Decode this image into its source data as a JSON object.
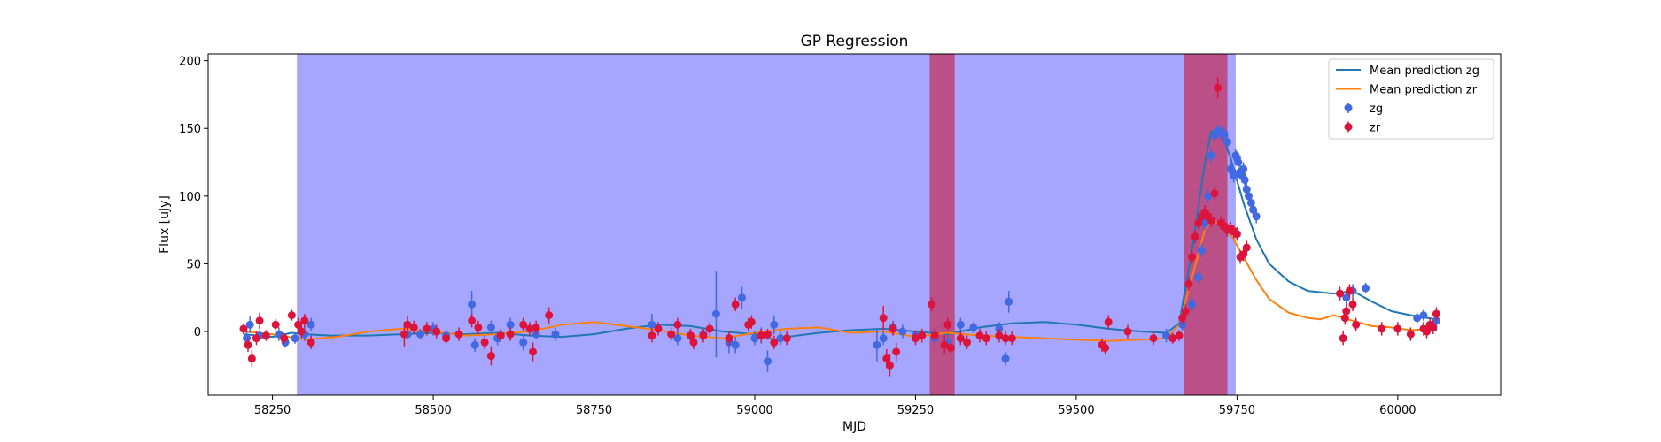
{
  "chart_data": {
    "type": "scatter",
    "title": "GP Regression",
    "xlabel": "MJD",
    "ylabel": "Flux [uJy]",
    "xlim": [
      58150,
      60160
    ],
    "ylim": [
      -47,
      205
    ],
    "xticks": [
      58250,
      58500,
      58750,
      59000,
      59250,
      59500,
      59750,
      60000
    ],
    "yticks": [
      0,
      50,
      100,
      150,
      200
    ],
    "legend_position": "top-right",
    "colors": {
      "gp_zg": "#1f77b4",
      "gp_zr": "#ff7f0e",
      "points_zg": "#4169e1",
      "points_zr": "#dc143c",
      "span_zg": "#6b6bff",
      "span_zr": "#c0396a"
    },
    "shaded_regions": [
      {
        "band": "zg",
        "x0": 58288,
        "x1": 59748
      },
      {
        "band": "zr",
        "x0": 59272,
        "x1": 59311
      },
      {
        "band": "zr",
        "x0": 59668,
        "x1": 59735
      }
    ],
    "legend": [
      {
        "label": "Mean prediction zg",
        "kind": "line",
        "color": "#1f77b4"
      },
      {
        "label": "Mean prediction zr",
        "kind": "line",
        "color": "#ff7f0e"
      },
      {
        "label": "zg",
        "kind": "marker",
        "color": "#4169e1"
      },
      {
        "label": "zr",
        "kind": "marker",
        "color": "#dc143c"
      }
    ],
    "series": [
      {
        "name": "Mean prediction zg",
        "kind": "line",
        "x": [
          58205,
          58250,
          58280,
          58300,
          58340,
          58400,
          58450,
          58500,
          58550,
          58600,
          58650,
          58700,
          58750,
          58800,
          58850,
          58900,
          58950,
          59000,
          59030,
          59050,
          59100,
          59150,
          59200,
          59250,
          59300,
          59350,
          59400,
          59450,
          59500,
          59550,
          59600,
          59640,
          59660,
          59680,
          59700,
          59710,
          59720,
          59730,
          59740,
          59760,
          59780,
          59800,
          59830,
          59860,
          59900,
          59930,
          59960,
          59990,
          60020,
          60060
        ],
        "y": [
          -2,
          -4,
          -1,
          -2,
          -3,
          -3,
          -2,
          -1,
          -2,
          -1,
          -3,
          -4,
          -2,
          2,
          5,
          4,
          0,
          -2,
          -6,
          -4,
          -1,
          1,
          2,
          0,
          -2,
          3,
          6,
          7,
          5,
          2,
          0,
          -1,
          6,
          60,
          125,
          148,
          147,
          142,
          128,
          95,
          68,
          50,
          37,
          30,
          28,
          30,
          22,
          15,
          12,
          9
        ]
      },
      {
        "name": "Mean prediction zr",
        "kind": "line",
        "x": [
          58205,
          58250,
          58300,
          58350,
          58400,
          58450,
          58500,
          58550,
          58600,
          58650,
          58700,
          58750,
          58800,
          58850,
          58900,
          58950,
          59000,
          59050,
          59100,
          59150,
          59200,
          59250,
          59300,
          59350,
          59400,
          59450,
          59500,
          59550,
          59600,
          59640,
          59660,
          59680,
          59700,
          59710,
          59720,
          59730,
          59740,
          59760,
          59780,
          59800,
          59830,
          59860,
          59880,
          59900,
          59930,
          59960,
          59990,
          60020,
          60060
        ],
        "y": [
          0,
          -2,
          -6,
          -4,
          0,
          2,
          0,
          -3,
          -2,
          0,
          5,
          7,
          4,
          1,
          -3,
          -5,
          -1,
          2,
          3,
          -1,
          0,
          -4,
          -1,
          -3,
          -4,
          -5,
          -6,
          -7,
          -6,
          -5,
          5,
          40,
          75,
          82,
          80,
          78,
          72,
          55,
          38,
          24,
          14,
          10,
          9,
          12,
          8,
          4,
          3,
          1,
          2
        ]
      },
      {
        "name": "zg",
        "kind": "points",
        "x": [
          58210,
          58215,
          58230,
          58260,
          58270,
          58285,
          58300,
          58310,
          58460,
          58480,
          58500,
          58520,
          58560,
          58565,
          58590,
          58600,
          58620,
          58640,
          58660,
          58690,
          58840,
          58880,
          58900,
          58920,
          58940,
          58960,
          58970,
          58980,
          59000,
          59010,
          59020,
          59030,
          59040,
          59190,
          59200,
          59215,
          59230,
          59250,
          59280,
          59300,
          59320,
          59340,
          59380,
          59390,
          59395,
          59640,
          59665,
          59680,
          59690,
          59695,
          59700,
          59705,
          59710,
          59715,
          59720,
          59725,
          59730,
          59735,
          59740,
          59743,
          59745,
          59748,
          59750,
          59752,
          59755,
          59758,
          59760,
          59762,
          59765,
          59768,
          59772,
          59775,
          59780,
          59920,
          59930,
          59950,
          60030,
          60040,
          60060
        ],
        "y": [
          -5,
          5,
          -3,
          -2,
          -8,
          -5,
          -2,
          5,
          -2,
          -2,
          2,
          -3,
          20,
          -10,
          3,
          -5,
          5,
          -8,
          -2,
          -2,
          5,
          -5,
          -3,
          -2,
          13,
          -8,
          -10,
          25,
          -5,
          -3,
          -22,
          5,
          -5,
          -10,
          -5,
          3,
          0,
          -3,
          -5,
          -8,
          5,
          3,
          2,
          -20,
          22,
          -3,
          5,
          20,
          40,
          60,
          80,
          100,
          130,
          145,
          148,
          147,
          146,
          140,
          120,
          118,
          115,
          130,
          128,
          125,
          118,
          115,
          120,
          112,
          105,
          100,
          95,
          90,
          85,
          25,
          30,
          32,
          10,
          12,
          8
        ],
        "err": [
          5,
          6,
          4,
          5,
          4,
          4,
          5,
          5,
          4,
          4,
          5,
          4,
          10,
          5,
          5,
          5,
          5,
          6,
          4,
          5,
          8,
          5,
          5,
          5,
          32,
          8,
          6,
          8,
          5,
          6,
          8,
          7,
          5,
          12,
          5,
          5,
          5,
          4,
          5,
          5,
          5,
          4,
          5,
          5,
          8,
          5,
          5,
          5,
          5,
          5,
          5,
          5,
          5,
          5,
          5,
          5,
          5,
          5,
          5,
          5,
          5,
          5,
          5,
          5,
          5,
          5,
          5,
          5,
          5,
          5,
          5,
          5,
          5,
          5,
          5,
          4,
          4,
          4,
          8
        ]
      },
      {
        "name": "zr",
        "kind": "points",
        "x": [
          58205,
          58212,
          58218,
          58225,
          58230,
          58240,
          58255,
          58268,
          58280,
          58290,
          58295,
          58300,
          58310,
          58455,
          58460,
          58470,
          58490,
          58505,
          58520,
          58540,
          58560,
          58570,
          58580,
          58590,
          58605,
          58620,
          58640,
          58650,
          58655,
          58660,
          58680,
          58840,
          58850,
          58870,
          58880,
          58900,
          58905,
          58920,
          58930,
          58960,
          58970,
          58990,
          58995,
          59010,
          59020,
          59030,
          59050,
          59200,
          59205,
          59210,
          59215,
          59220,
          59250,
          59260,
          59275,
          59280,
          59295,
          59300,
          59305,
          59320,
          59330,
          59350,
          59360,
          59380,
          59390,
          59400,
          59540,
          59545,
          59550,
          59580,
          59620,
          59650,
          59660,
          59665,
          59670,
          59675,
          59680,
          59685,
          59690,
          59695,
          59700,
          59705,
          59710,
          59715,
          59720,
          59725,
          59730,
          59735,
          59740,
          59745,
          59750,
          59755,
          59760,
          59765,
          59910,
          59915,
          59918,
          59920,
          59925,
          59930,
          59935,
          59975,
          60000,
          60020,
          60040,
          60045,
          60050,
          60055,
          60060
        ],
        "y": [
          2,
          -10,
          -20,
          -5,
          8,
          -3,
          5,
          -5,
          12,
          5,
          0,
          8,
          -8,
          -2,
          5,
          3,
          2,
          0,
          -5,
          -2,
          8,
          3,
          -8,
          -18,
          -3,
          -2,
          5,
          2,
          -15,
          3,
          12,
          -3,
          2,
          -2,
          5,
          -3,
          -8,
          -3,
          2,
          -5,
          20,
          5,
          7,
          -3,
          -2,
          -8,
          -5,
          10,
          -20,
          -25,
          2,
          -15,
          -5,
          -3,
          20,
          -3,
          -10,
          5,
          -12,
          -5,
          -8,
          -3,
          -5,
          -3,
          -5,
          -5,
          -10,
          -12,
          7,
          0,
          -5,
          -5,
          -3,
          10,
          15,
          35,
          55,
          70,
          80,
          85,
          88,
          85,
          82,
          102,
          180,
          80,
          78,
          75,
          76,
          74,
          72,
          55,
          57,
          62,
          28,
          -5,
          10,
          15,
          30,
          20,
          5,
          2,
          2,
          -2,
          2,
          0,
          5,
          3,
          13
        ],
        "err": [
          4,
          5,
          6,
          5,
          6,
          4,
          4,
          4,
          4,
          5,
          5,
          5,
          5,
          9,
          6,
          5,
          5,
          5,
          4,
          5,
          5,
          5,
          5,
          7,
          5,
          5,
          5,
          5,
          7,
          5,
          6,
          5,
          5,
          5,
          5,
          5,
          5,
          5,
          5,
          5,
          5,
          5,
          5,
          5,
          4,
          5,
          5,
          9,
          7,
          8,
          5,
          7,
          5,
          5,
          5,
          5,
          7,
          5,
          5,
          5,
          5,
          5,
          5,
          5,
          5,
          5,
          5,
          5,
          5,
          5,
          5,
          4,
          4,
          5,
          5,
          5,
          5,
          5,
          5,
          5,
          5,
          5,
          5,
          5,
          8,
          5,
          5,
          5,
          5,
          5,
          5,
          5,
          5,
          5,
          5,
          5,
          5,
          5,
          5,
          5,
          5,
          5,
          5,
          5,
          5,
          5,
          5,
          5,
          5
        ]
      }
    ]
  }
}
